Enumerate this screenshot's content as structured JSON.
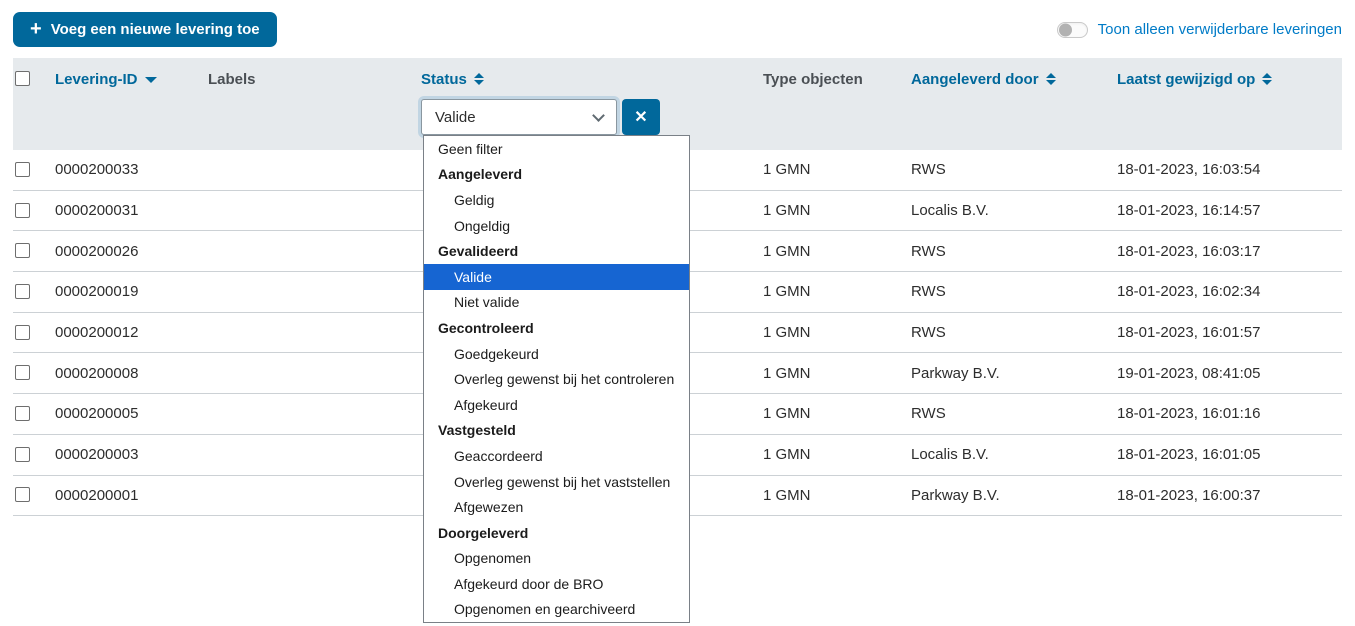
{
  "colors": {
    "accent": "#01689b",
    "link_light": "#007bc7",
    "header_bg": "#e6eaed",
    "selected_option_bg": "#1665d2"
  },
  "toolbar": {
    "add_button_label": "Voeg een nieuwe levering toe",
    "toggle_label": "Toon alleen verwijderbare leveringen",
    "toggle_state": "off"
  },
  "icons": {
    "plus": "+",
    "clear": "✕"
  },
  "table": {
    "header": {
      "levering_id": "Levering-ID",
      "labels": "Labels",
      "status": "Status",
      "type_objecten": "Type objecten",
      "aangeleverd_door": "Aangeleverd door",
      "laatst_gewijzigd_op": "Laatst gewijzigd op"
    },
    "sorting": {
      "levering_id": "desc",
      "status": "both",
      "aangeleverd_door": "both",
      "laatst_gewijzigd_op": "both"
    },
    "rows": [
      {
        "id": "0000200033",
        "labels": "",
        "type": "1 GMN",
        "door": "RWS",
        "gewijzigd": "18-01-2023, 16:03:54"
      },
      {
        "id": "0000200031",
        "labels": "",
        "type": "1 GMN",
        "door": "Localis B.V.",
        "gewijzigd": "18-01-2023, 16:14:57"
      },
      {
        "id": "0000200026",
        "labels": "",
        "type": "1 GMN",
        "door": "RWS",
        "gewijzigd": "18-01-2023, 16:03:17"
      },
      {
        "id": "0000200019",
        "labels": "",
        "type": "1 GMN",
        "door": "RWS",
        "gewijzigd": "18-01-2023, 16:02:34"
      },
      {
        "id": "0000200012",
        "labels": "",
        "type": "1 GMN",
        "door": "RWS",
        "gewijzigd": "18-01-2023, 16:01:57"
      },
      {
        "id": "0000200008",
        "labels": "",
        "type": "1 GMN",
        "door": "Parkway B.V.",
        "gewijzigd": "19-01-2023, 08:41:05"
      },
      {
        "id": "0000200005",
        "labels": "",
        "type": "1 GMN",
        "door": "RWS",
        "gewijzigd": "18-01-2023, 16:01:16"
      },
      {
        "id": "0000200003",
        "labels": "",
        "type": "1 GMN",
        "door": "Localis B.V.",
        "gewijzigd": "18-01-2023, 16:01:05"
      },
      {
        "id": "0000200001",
        "labels": "",
        "type": "1 GMN",
        "door": "Parkway B.V.",
        "gewijzigd": "18-01-2023, 16:00:37"
      }
    ]
  },
  "status_filter": {
    "selected_value": "Valide",
    "options": [
      {
        "label": "Geen filter",
        "type": "option",
        "indent": false
      },
      {
        "label": "Aangeleverd",
        "type": "group"
      },
      {
        "label": "Geldig",
        "type": "option"
      },
      {
        "label": "Ongeldig",
        "type": "option"
      },
      {
        "label": "Gevalideerd",
        "type": "group"
      },
      {
        "label": "Valide",
        "type": "option",
        "selected": true
      },
      {
        "label": "Niet valide",
        "type": "option"
      },
      {
        "label": "Gecontroleerd",
        "type": "group"
      },
      {
        "label": "Goedgekeurd",
        "type": "option"
      },
      {
        "label": "Overleg gewenst bij het controleren",
        "type": "option"
      },
      {
        "label": "Afgekeurd",
        "type": "option"
      },
      {
        "label": "Vastgesteld",
        "type": "group"
      },
      {
        "label": "Geaccordeerd",
        "type": "option"
      },
      {
        "label": "Overleg gewenst bij het vaststellen",
        "type": "option"
      },
      {
        "label": "Afgewezen",
        "type": "option"
      },
      {
        "label": "Doorgeleverd",
        "type": "group"
      },
      {
        "label": "Opgenomen",
        "type": "option"
      },
      {
        "label": "Afgekeurd door de BRO",
        "type": "option"
      },
      {
        "label": "Opgenomen en gearchiveerd",
        "type": "option"
      }
    ]
  }
}
